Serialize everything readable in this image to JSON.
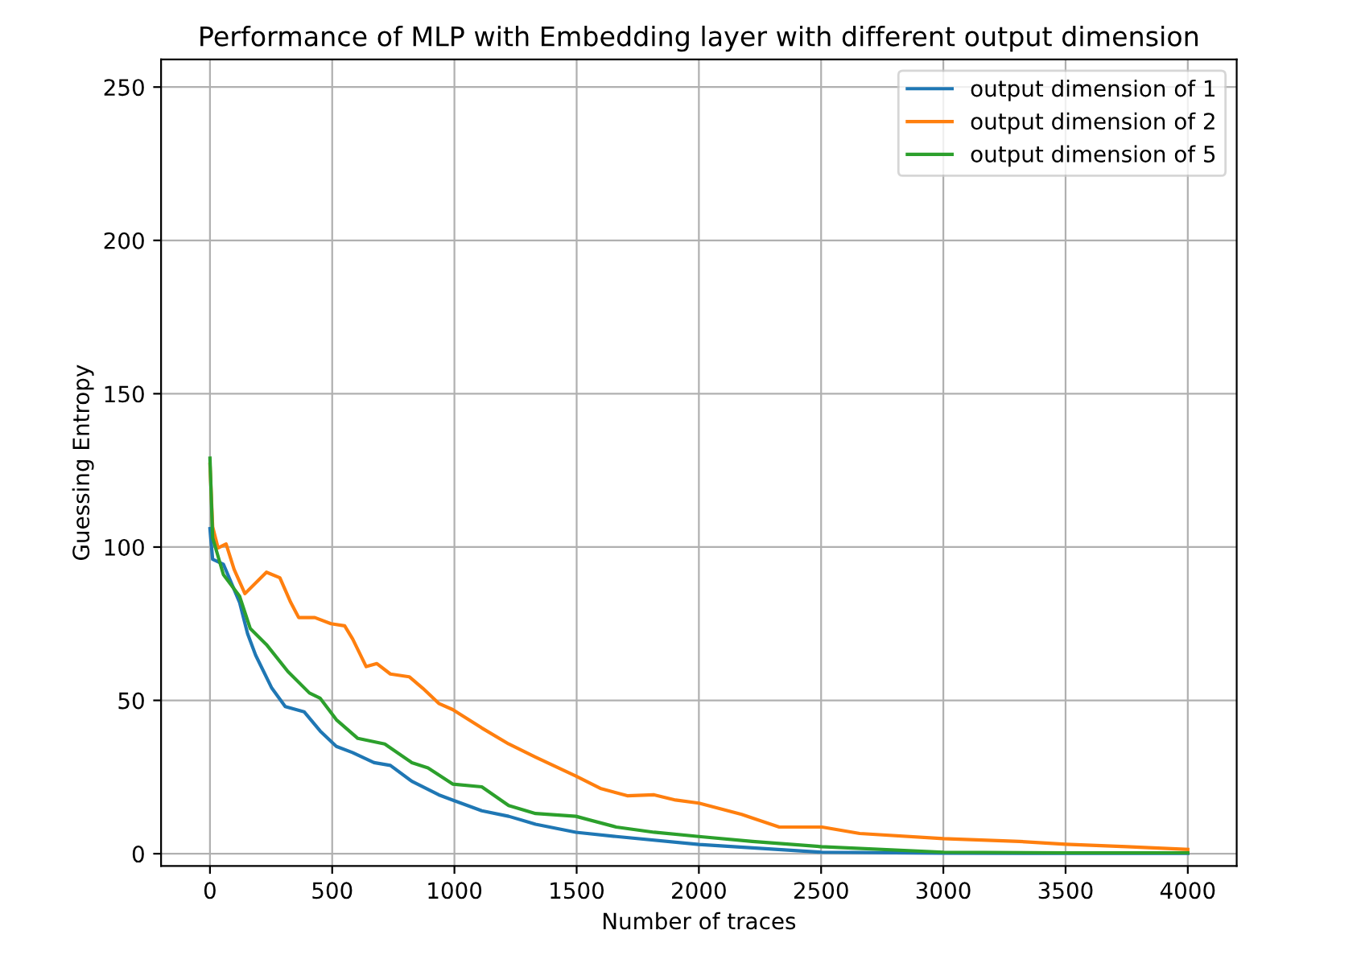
{
  "chart_data": {
    "type": "line",
    "title": "Performance of MLP with Embedding layer with different output dimension",
    "xlabel": "Number of traces",
    "ylabel": "Guessing Entropy",
    "xlim": [
      -200,
      4200
    ],
    "ylim": [
      -4,
      259
    ],
    "xticks": [
      0,
      500,
      1000,
      1500,
      2000,
      2500,
      3000,
      3500,
      4000
    ],
    "yticks": [
      0,
      50,
      100,
      150,
      200,
      250
    ],
    "grid": true,
    "legend": "top right",
    "series": [
      {
        "name": "output dimension of 1",
        "color": "#1f77b4",
        "x": [
          0,
          11,
          55,
          121,
          154,
          187,
          253,
          308,
          385,
          451,
          517,
          583,
          671,
          738,
          826,
          936,
          993,
          1112,
          1222,
          1332,
          1497,
          1662,
          2000,
          2500,
          3000,
          3500,
          4000
        ],
        "values": [
          106,
          96,
          94.4,
          82,
          71.7,
          64.7,
          54,
          48,
          46.3,
          40,
          35,
          33,
          29.7,
          28.8,
          23.6,
          19.2,
          17.5,
          14,
          12.2,
          9.6,
          7,
          5.6,
          3,
          0.5,
          0.2,
          0.1,
          0.1
        ]
      },
      {
        "name": "output dimension of 2",
        "color": "#ff7f0e",
        "x": [
          0,
          11,
          33,
          66,
          99,
          143,
          231,
          286,
          330,
          363,
          429,
          495,
          551,
          584,
          639,
          683,
          738,
          815,
          870,
          936,
          993,
          1112,
          1222,
          1332,
          1497,
          1597,
          1707,
          1817,
          1905,
          2000,
          2175,
          2329,
          2504,
          2658,
          3000,
          3311,
          3500,
          3750,
          4000
        ],
        "values": [
          127,
          106.6,
          99.7,
          101,
          92.7,
          84.8,
          91.8,
          90,
          82,
          77,
          77,
          75,
          74.3,
          70,
          61,
          62,
          58.6,
          57.7,
          54,
          49,
          47,
          41,
          35.8,
          31.5,
          25.3,
          21.3,
          18.9,
          19.2,
          17.5,
          16.5,
          12.8,
          8.7,
          8.7,
          6.6,
          4.9,
          4,
          3.1,
          2.3,
          1.4
        ]
      },
      {
        "name": "output dimension of 5",
        "color": "#2ca02c",
        "x": [
          0,
          11,
          55,
          121,
          165,
          231,
          319,
          407,
          451,
          517,
          605,
          715,
          826,
          892,
          993,
          1112,
          1222,
          1332,
          1497,
          1662,
          1817,
          2000,
          2219,
          2500,
          3000,
          3500,
          4000
        ],
        "values": [
          129,
          103,
          91,
          84,
          73.4,
          68.2,
          59.4,
          52.4,
          50.7,
          43.7,
          37.6,
          35.8,
          29.7,
          28,
          22.7,
          21.8,
          15.7,
          13.1,
          12.2,
          8.7,
          7,
          5.6,
          4,
          2.3,
          0.5,
          0.3,
          0.3
        ]
      }
    ]
  }
}
